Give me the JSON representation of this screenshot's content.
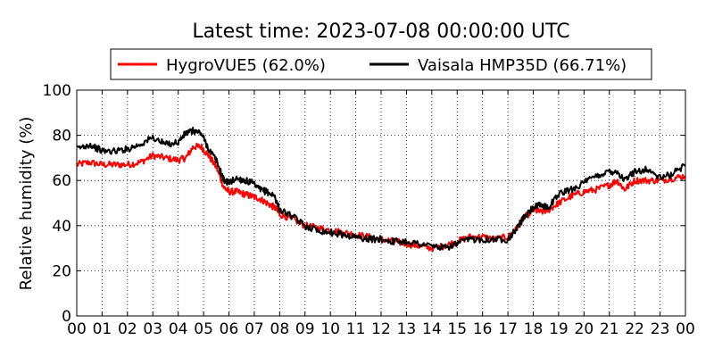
{
  "chart_data": {
    "type": "line",
    "title": "Latest time: 2023-07-08 00:00:00 UTC",
    "xlabel": "",
    "ylabel": "Relative humidity (%)",
    "ylim": [
      0,
      100
    ],
    "xlim": [
      0,
      24
    ],
    "grid": true,
    "legend_position": "top, above plot",
    "x_tick_labels": [
      "00",
      "01",
      "02",
      "03",
      "04",
      "05",
      "06",
      "07",
      "08",
      "09",
      "10",
      "11",
      "12",
      "13",
      "14",
      "15",
      "16",
      "17",
      "18",
      "19",
      "20",
      "21",
      "22",
      "23",
      "00"
    ],
    "y_tick_labels": [
      "0",
      "20",
      "40",
      "60",
      "80",
      "100"
    ],
    "series": [
      {
        "name": "HygroVUE5 (62.0%)",
        "color": "#ff0000",
        "x": [
          0,
          0.5,
          1,
          1.5,
          2,
          2.5,
          3,
          3.5,
          4,
          4.3,
          4.6,
          4.9,
          5.2,
          5.5,
          5.8,
          6,
          6.3,
          6.6,
          6.9,
          7.2,
          7.5,
          7.8,
          8,
          8.5,
          9,
          9.5,
          10,
          10.5,
          11,
          11.5,
          12,
          12.5,
          13,
          13.5,
          14,
          14.5,
          15,
          15.5,
          16,
          16.5,
          17,
          17.3,
          17.6,
          18,
          18.3,
          18.6,
          19,
          19.5,
          20,
          20.5,
          21,
          21.3,
          21.6,
          22,
          22.5,
          23,
          23.5,
          24
        ],
        "y": [
          67,
          68,
          67,
          67,
          67,
          68,
          71,
          70,
          69,
          70,
          75,
          75,
          71,
          66,
          57,
          55,
          55,
          54,
          53,
          52,
          50,
          48,
          45,
          43,
          40,
          39,
          38,
          37,
          36,
          35,
          34,
          33,
          32,
          31,
          30,
          31,
          33,
          35,
          35,
          34,
          35,
          38,
          43,
          47,
          46,
          47,
          50,
          53,
          55,
          56,
          58,
          60,
          56,
          60,
          60,
          60,
          61,
          62
        ]
      },
      {
        "name": "Vaisala HMP35D (66.71%)",
        "color": "#000000",
        "x": [
          0,
          0.5,
          1,
          1.5,
          2,
          2.5,
          3,
          3.5,
          4,
          4.3,
          4.6,
          4.9,
          5.2,
          5.5,
          5.8,
          6,
          6.3,
          6.6,
          6.9,
          7.2,
          7.5,
          7.8,
          8,
          8.5,
          9,
          9.5,
          10,
          10.5,
          11,
          11.5,
          12,
          12.5,
          13,
          13.5,
          14,
          14.5,
          15,
          15.5,
          16,
          16.5,
          17,
          17.3,
          17.6,
          18,
          18.3,
          18.6,
          19,
          19.5,
          20,
          20.5,
          21,
          21.3,
          21.6,
          22,
          22.5,
          23,
          23.5,
          24
        ],
        "y": [
          74,
          76,
          73,
          73,
          74,
          76,
          79,
          76,
          77,
          81,
          82,
          81,
          74,
          69,
          60,
          59,
          61,
          60,
          59,
          56,
          55,
          53,
          47,
          44,
          40,
          38,
          37,
          36,
          35,
          34,
          34,
          33,
          33,
          32,
          31,
          30,
          32,
          34,
          34,
          34,
          34,
          38,
          43,
          48,
          49,
          48,
          54,
          56,
          59,
          62,
          64,
          64,
          60,
          64,
          65,
          61,
          63,
          67
        ]
      }
    ]
  }
}
